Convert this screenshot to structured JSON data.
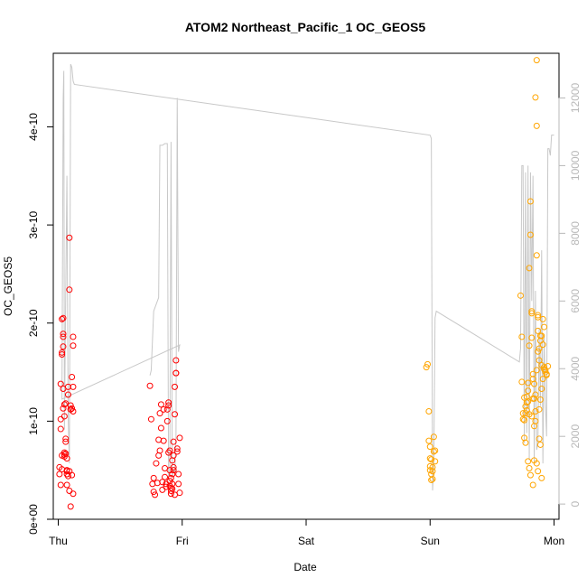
{
  "chart_data": {
    "type": "scatter",
    "title": "ATOM2 Northeast_Pacific_1 OC_GEOS5",
    "xlabel": "Date",
    "ylabel": "OC_GEOS5",
    "x_tick_labels": [
      "Thu",
      "Fri",
      "Sat",
      "Sun",
      "Mon"
    ],
    "x_tick_values": [
      0,
      1,
      2,
      3,
      4
    ],
    "xlim": [
      -0.04,
      4.04
    ],
    "ylim": [
      0,
      4.75e-10
    ],
    "y_ticks": [
      0,
      1e-10,
      2e-10,
      3e-10,
      4e-10
    ],
    "y_tick_labels": [
      "0e+00",
      "1e-10",
      "2e-10",
      "3e-10",
      "4e-10"
    ],
    "y2_ticks": [
      0,
      2000,
      4000,
      6000,
      8000,
      10000,
      12000
    ],
    "y2_tick_labels": [
      "0",
      "2000",
      "4000",
      "6000",
      "8000",
      "10000",
      "12000"
    ],
    "y2lim": [
      -450,
      13320
    ],
    "colors": {
      "red_series": "#ff0000",
      "orange_series": "#ffa500",
      "altitude_line": "#c8c8c8",
      "right_axis": "#b8b8b8"
    },
    "series": [
      {
        "color": "#ff0000",
        "points": [
          [
            0.01,
            5.3e-11
          ],
          [
            0.01,
            4.6e-11
          ],
          [
            0.02,
            3.5e-11
          ],
          [
            0.02,
            1.02e-10
          ],
          [
            0.02,
            1.38e-10
          ],
          [
            0.03,
            5.1e-11
          ],
          [
            0.03,
            6.5e-11
          ],
          [
            0.03,
            1.7e-10
          ],
          [
            0.03,
            2.04e-10
          ],
          [
            0.04,
            2.05e-10
          ],
          [
            0.04,
            1.76e-10
          ],
          [
            0.04,
            1.86e-10
          ],
          [
            0.04,
            1.89e-10
          ],
          [
            0.04,
            1.33e-10
          ],
          [
            0.05,
            6.6e-11
          ],
          [
            0.05,
            6.8e-11
          ],
          [
            0.05,
            6.4e-11
          ],
          [
            0.05,
            1.05e-10
          ],
          [
            0.06,
            1.18e-10
          ],
          [
            0.06,
            8.2e-11
          ],
          [
            0.06,
            7.9e-11
          ],
          [
            0.07,
            5e-11
          ],
          [
            0.07,
            4.6e-11
          ],
          [
            0.07,
            3.5e-11
          ],
          [
            0.08,
            4.4e-11
          ],
          [
            0.08,
            1.35e-10
          ],
          [
            0.08,
            1.27e-10
          ],
          [
            0.09,
            2.34e-10
          ],
          [
            0.09,
            2.87e-10
          ],
          [
            0.09,
            4.9e-11
          ],
          [
            0.1,
            1.3e-11
          ],
          [
            0.1,
            1.16e-10
          ],
          [
            0.1,
            1.12e-10
          ],
          [
            0.11,
            4.5e-11
          ],
          [
            0.11,
            1.45e-10
          ],
          [
            0.12,
            1.35e-10
          ],
          [
            0.12,
            1.86e-10
          ],
          [
            0.12,
            1.77e-10
          ],
          [
            0.12,
            1.1e-10
          ],
          [
            0.12,
            2.6e-11
          ],
          [
            0.1,
            1.12e-10
          ],
          [
            0.11,
            1.13e-10
          ],
          [
            0.07,
            6.2e-11
          ],
          [
            0.07,
            4.9e-11
          ],
          [
            0.06,
            6.7e-11
          ],
          [
            0.05,
            1.17e-10
          ],
          [
            0.09,
            2.9e-11
          ],
          [
            0.02,
            9.2e-11
          ],
          [
            0.03,
            1.68e-10
          ],
          [
            0.04,
            1.13e-10
          ],
          [
            0.74,
            1.36e-10
          ],
          [
            0.75,
            1.02e-10
          ],
          [
            0.76,
            3.6e-11
          ],
          [
            0.77,
            4.2e-11
          ],
          [
            0.77,
            2.8e-11
          ],
          [
            0.78,
            2.5e-11
          ],
          [
            0.79,
            5.7e-11
          ],
          [
            0.8,
            3.7e-11
          ],
          [
            0.81,
            8.1e-11
          ],
          [
            0.81,
            6.5e-11
          ],
          [
            0.82,
            7e-11
          ],
          [
            0.82,
            1.08e-10
          ],
          [
            0.83,
            1.17e-10
          ],
          [
            0.83,
            9.3e-11
          ],
          [
            0.84,
            3e-11
          ],
          [
            0.84,
            3.8e-11
          ],
          [
            0.85,
            8e-11
          ],
          [
            0.85,
            1.12e-10
          ],
          [
            0.86,
            5.2e-11
          ],
          [
            0.86,
            4.3e-11
          ],
          [
            0.87,
            3.6e-11
          ],
          [
            0.87,
            3.3e-11
          ],
          [
            0.88,
            1e-10
          ],
          [
            0.88,
            1.12e-10
          ],
          [
            0.89,
            1.19e-10
          ],
          [
            0.89,
            1.16e-10
          ],
          [
            0.89,
            6.8e-11
          ],
          [
            0.9,
            7e-11
          ],
          [
            0.9,
            5e-11
          ],
          [
            0.9,
            3.9e-11
          ],
          [
            0.91,
            3.2e-11
          ],
          [
            0.91,
            2.9e-11
          ],
          [
            0.91,
            2.6e-11
          ],
          [
            0.92,
            3.1e-11
          ],
          [
            0.92,
            3.6e-11
          ],
          [
            0.92,
            4.6e-11
          ],
          [
            0.93,
            5.3e-11
          ],
          [
            0.93,
            6.5e-11
          ],
          [
            0.93,
            7.9e-11
          ],
          [
            0.94,
            1.07e-10
          ],
          [
            0.94,
            1.35e-10
          ],
          [
            0.95,
            1.49e-10
          ],
          [
            0.95,
            1.62e-10
          ],
          [
            0.95,
            1.49e-10
          ],
          [
            0.96,
            7.2e-11
          ],
          [
            0.96,
            6.9e-11
          ],
          [
            0.97,
            4.6e-11
          ],
          [
            0.97,
            3.6e-11
          ],
          [
            0.98,
            2.7e-11
          ],
          [
            0.98,
            8.3e-11
          ],
          [
            0.9,
            3.4e-11
          ],
          [
            0.91,
            4.2e-11
          ],
          [
            0.92,
            6e-11
          ],
          [
            0.93,
            5e-11
          ],
          [
            0.94,
            2.5e-11
          ]
        ]
      },
      {
        "color": "#ffa500",
        "points": [
          [
            2.97,
            1.55e-10
          ],
          [
            2.98,
            1.58e-10
          ],
          [
            2.99,
            1.1e-10
          ],
          [
            2.99,
            8e-11
          ],
          [
            3.0,
            5.4e-11
          ],
          [
            3.0,
            7.4e-11
          ],
          [
            3.0,
            6.2e-11
          ],
          [
            3.01,
            4.6e-11
          ],
          [
            3.01,
            4e-11
          ],
          [
            3.02,
            5.3e-11
          ],
          [
            3.02,
            4.1e-11
          ],
          [
            3.03,
            6.9e-11
          ],
          [
            3.03,
            8.4e-11
          ],
          [
            3.04,
            7e-11
          ],
          [
            3.04,
            5.9e-11
          ],
          [
            3.02,
            4.9e-11
          ],
          [
            3.01,
            6.1e-11
          ],
          [
            3.0,
            5e-11
          ],
          [
            3.73,
            2.28e-10
          ],
          [
            3.74,
            1.86e-10
          ],
          [
            3.74,
            1.4e-10
          ],
          [
            3.75,
            1.08e-10
          ],
          [
            3.75,
            1.02e-10
          ],
          [
            3.76,
            1.01e-10
          ],
          [
            3.76,
            8.3e-11
          ],
          [
            3.77,
            7.8e-11
          ],
          [
            3.77,
            1.08e-10
          ],
          [
            3.78,
            1.19e-10
          ],
          [
            3.78,
            1.25e-10
          ],
          [
            3.79,
            1.31e-10
          ],
          [
            3.79,
            1.2e-10
          ],
          [
            3.8,
            1.07e-10
          ],
          [
            3.8,
            1.77e-10
          ],
          [
            3.8,
            2.56e-10
          ],
          [
            3.81,
            3.24e-10
          ],
          [
            3.81,
            2.9e-10
          ],
          [
            3.82,
            2.12e-10
          ],
          [
            3.82,
            2.1e-10
          ],
          [
            3.82,
            1.85e-10
          ],
          [
            3.83,
            1.48e-10
          ],
          [
            3.83,
            1.43e-10
          ],
          [
            3.84,
            1.38e-10
          ],
          [
            3.84,
            1.23e-10
          ],
          [
            3.85,
            1.1e-10
          ],
          [
            3.85,
            1e-10
          ],
          [
            3.85,
            4.3e-10
          ],
          [
            3.86,
            4.68e-10
          ],
          [
            3.86,
            4.01e-10
          ],
          [
            3.86,
            2.69e-10
          ],
          [
            3.87,
            2.06e-10
          ],
          [
            3.87,
            2.08e-10
          ],
          [
            3.87,
            1.92e-10
          ],
          [
            3.88,
            1.74e-10
          ],
          [
            3.88,
            1.62e-10
          ],
          [
            3.89,
            1.82e-10
          ],
          [
            3.89,
            1.87e-10
          ],
          [
            3.9,
            1.87e-10
          ],
          [
            3.9,
            1.57e-10
          ],
          [
            3.91,
            2.04e-10
          ],
          [
            3.91,
            1.43e-10
          ],
          [
            3.92,
            1.53e-10
          ],
          [
            3.92,
            1.55e-10
          ],
          [
            3.93,
            1.5e-10
          ],
          [
            3.93,
            1.52e-10
          ],
          [
            3.94,
            1.48e-10
          ],
          [
            3.94,
            1.47e-10
          ],
          [
            3.95,
            1.56e-10
          ],
          [
            3.79,
            5.9e-11
          ],
          [
            3.8,
            5.2e-11
          ],
          [
            3.81,
            4.5e-11
          ],
          [
            3.83,
            3.5e-11
          ],
          [
            3.84,
            6e-11
          ],
          [
            3.86,
            5.7e-11
          ],
          [
            3.87,
            4.9e-11
          ],
          [
            3.88,
            8.2e-11
          ],
          [
            3.89,
            7.6e-11
          ],
          [
            3.9,
            4.2e-11
          ],
          [
            3.82,
            1.05e-10
          ],
          [
            3.83,
            1.23e-10
          ],
          [
            3.84,
            9.5e-11
          ],
          [
            3.85,
            1.27e-10
          ],
          [
            3.86,
            1.52e-10
          ],
          [
            3.87,
            1.71e-10
          ],
          [
            3.88,
            1.12e-10
          ],
          [
            3.89,
            1.22e-10
          ],
          [
            3.9,
            1.33e-10
          ],
          [
            3.91,
            1.78e-10
          ],
          [
            3.92,
            1.96e-10
          ],
          [
            3.76,
            1.24e-10
          ],
          [
            3.77,
            1.15e-10
          ],
          [
            3.78,
            1.11e-10
          ],
          [
            3.79,
            1.39e-10
          ]
        ]
      }
    ],
    "secondary_line": {
      "axis": "right",
      "points": [
        [
          0.74,
          3800
        ],
        [
          0.75,
          3950
        ],
        [
          0.77,
          5700
        ],
        [
          0.79,
          5900
        ],
        [
          0.81,
          6100
        ],
        [
          0.82,
          10600
        ],
        [
          0.84,
          10600
        ],
        [
          0.86,
          10650
        ],
        [
          0.88,
          10650
        ],
        [
          0.89,
          800
        ],
        [
          0.9,
          1000
        ],
        [
          0.91,
          10700
        ],
        [
          0.92,
          800
        ],
        [
          0.93,
          1000
        ],
        [
          0.94,
          900
        ],
        [
          0.95,
          2000
        ],
        [
          0.96,
          12000
        ],
        [
          0.97,
          4500
        ],
        [
          0.98,
          4700
        ],
        [
          0.03,
          3100
        ],
        [
          0.04,
          12000
        ],
        [
          0.045,
          12800
        ],
        [
          0.05,
          2200
        ],
        [
          0.06,
          6000
        ],
        [
          0.07,
          9700
        ],
        [
          0.08,
          2600
        ],
        [
          0.09,
          1200
        ],
        [
          0.1,
          13000
        ],
        [
          0.11,
          12900
        ],
        [
          0.12,
          12500
        ],
        [
          0.13,
          12400
        ],
        [
          3.0,
          10900
        ],
        [
          3.01,
          10800
        ],
        [
          3.02,
          400
        ],
        [
          3.03,
          1200
        ],
        [
          3.04,
          5500
        ],
        [
          3.05,
          5700
        ],
        [
          3.72,
          4200
        ],
        [
          3.73,
          4600
        ],
        [
          3.74,
          10000
        ],
        [
          3.75,
          10000
        ],
        [
          3.76,
          1800
        ],
        [
          3.77,
          9800
        ],
        [
          3.78,
          2100
        ],
        [
          3.79,
          10000
        ],
        [
          3.8,
          1300
        ],
        [
          3.81,
          9800
        ],
        [
          3.82,
          6000
        ],
        [
          3.83,
          9700
        ],
        [
          3.84,
          1200
        ],
        [
          3.85,
          6300
        ],
        [
          3.86,
          1600
        ],
        [
          3.87,
          1800
        ],
        [
          3.88,
          5200
        ],
        [
          3.89,
          2900
        ],
        [
          3.9,
          7500
        ],
        [
          3.91,
          1200
        ],
        [
          3.92,
          5000
        ],
        [
          3.93,
          3000
        ],
        [
          3.94,
          2000
        ],
        [
          3.95,
          10500
        ],
        [
          3.96,
          10500
        ],
        [
          3.97,
          10300
        ],
        [
          3.98,
          10900
        ],
        [
          4.0,
          10900
        ]
      ]
    }
  }
}
